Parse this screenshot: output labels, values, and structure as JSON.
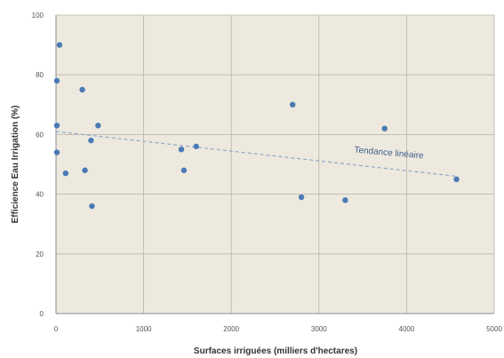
{
  "chart_data": {
    "type": "scatter",
    "title": "",
    "xlabel": "Surfaces irriguées (milliers d'hectares)",
    "ylabel": "Efficience Eau Irrigation (%)",
    "xlim": [
      0,
      5000
    ],
    "ylim": [
      0,
      100
    ],
    "x_ticks": [
      "0",
      "1000",
      "2000",
      "3000",
      "4000",
      "5000"
    ],
    "y_ticks": [
      "0",
      "20",
      "40",
      "60",
      "80",
      "100"
    ],
    "grid": true,
    "plot_background": "#ede9df",
    "point_color": "#4a7ab5",
    "trend_color": "#8fa8c8",
    "series": [
      {
        "points": [
          {
            "x": 40,
            "y": 90
          },
          {
            "x": 10,
            "y": 78
          },
          {
            "x": 300,
            "y": 75
          },
          {
            "x": 10,
            "y": 63
          },
          {
            "x": 480,
            "y": 63
          },
          {
            "x": 400,
            "y": 58
          },
          {
            "x": 10,
            "y": 54
          },
          {
            "x": 330,
            "y": 48
          },
          {
            "x": 110,
            "y": 47
          },
          {
            "x": 410,
            "y": 36
          },
          {
            "x": 1430,
            "y": 55
          },
          {
            "x": 1600,
            "y": 56
          },
          {
            "x": 1460,
            "y": 48
          },
          {
            "x": 2700,
            "y": 70
          },
          {
            "x": 2800,
            "y": 39
          },
          {
            "x": 3300,
            "y": 38
          },
          {
            "x": 3750,
            "y": 62
          },
          {
            "x": 4570,
            "y": 45
          }
        ]
      }
    ],
    "trendline": {
      "label": "Tendance linéaire",
      "points": [
        {
          "x": 0,
          "y": 61
        },
        {
          "x": 4570,
          "y": 46
        }
      ]
    }
  }
}
